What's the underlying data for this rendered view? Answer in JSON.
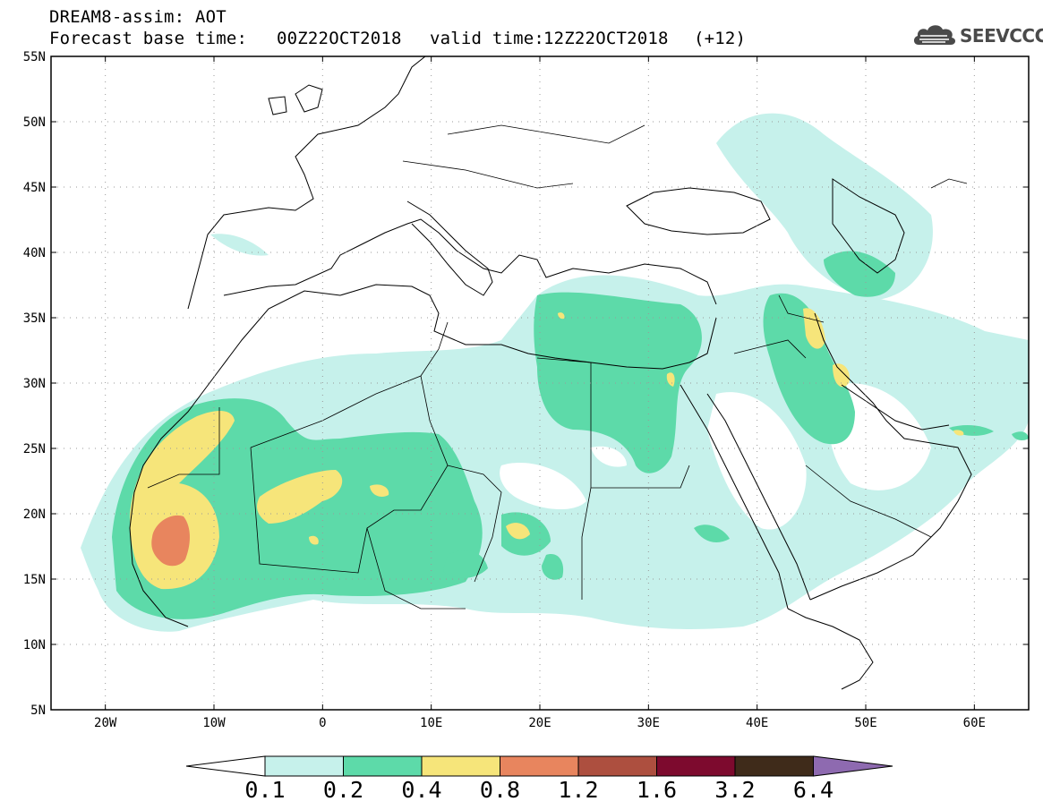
{
  "header": {
    "title": "DREAM8-assim: AOT",
    "base_label": "Forecast base time:",
    "base_time": "00Z22OCT2018",
    "valid_label": "valid time:",
    "valid_time": "12Z22OCT2018",
    "forecast_step": "(+12)"
  },
  "logo": {
    "text": "SEEVCCC",
    "icon": "cloud-icon"
  },
  "map": {
    "variable": "Aerosol optical thickness",
    "lat_range": [
      5,
      55
    ],
    "lon_range": [
      -25,
      65
    ],
    "lat_ticks": [
      "55N",
      "50N",
      "45N",
      "40N",
      "35N",
      "30N",
      "25N",
      "20N",
      "15N",
      "10N",
      "5N"
    ],
    "lon_ticks": [
      "20W",
      "10W",
      "0",
      "10E",
      "20E",
      "30E",
      "40E",
      "50E",
      "60E"
    ],
    "grid": "dotted",
    "region": "North Africa, Europe, Middle East"
  },
  "colorbar": {
    "levels": [
      "0.1",
      "0.2",
      "0.4",
      "0.8",
      "1.2",
      "1.6",
      "3.2",
      "6.4"
    ],
    "colors": [
      "#c6f1eb",
      "#5ddaa9",
      "#f6e57a",
      "#e8855e",
      "#ad4f3f",
      "#7d0a2e",
      "#3f2b1a",
      "#8e6ab0"
    ],
    "extend": "both"
  }
}
